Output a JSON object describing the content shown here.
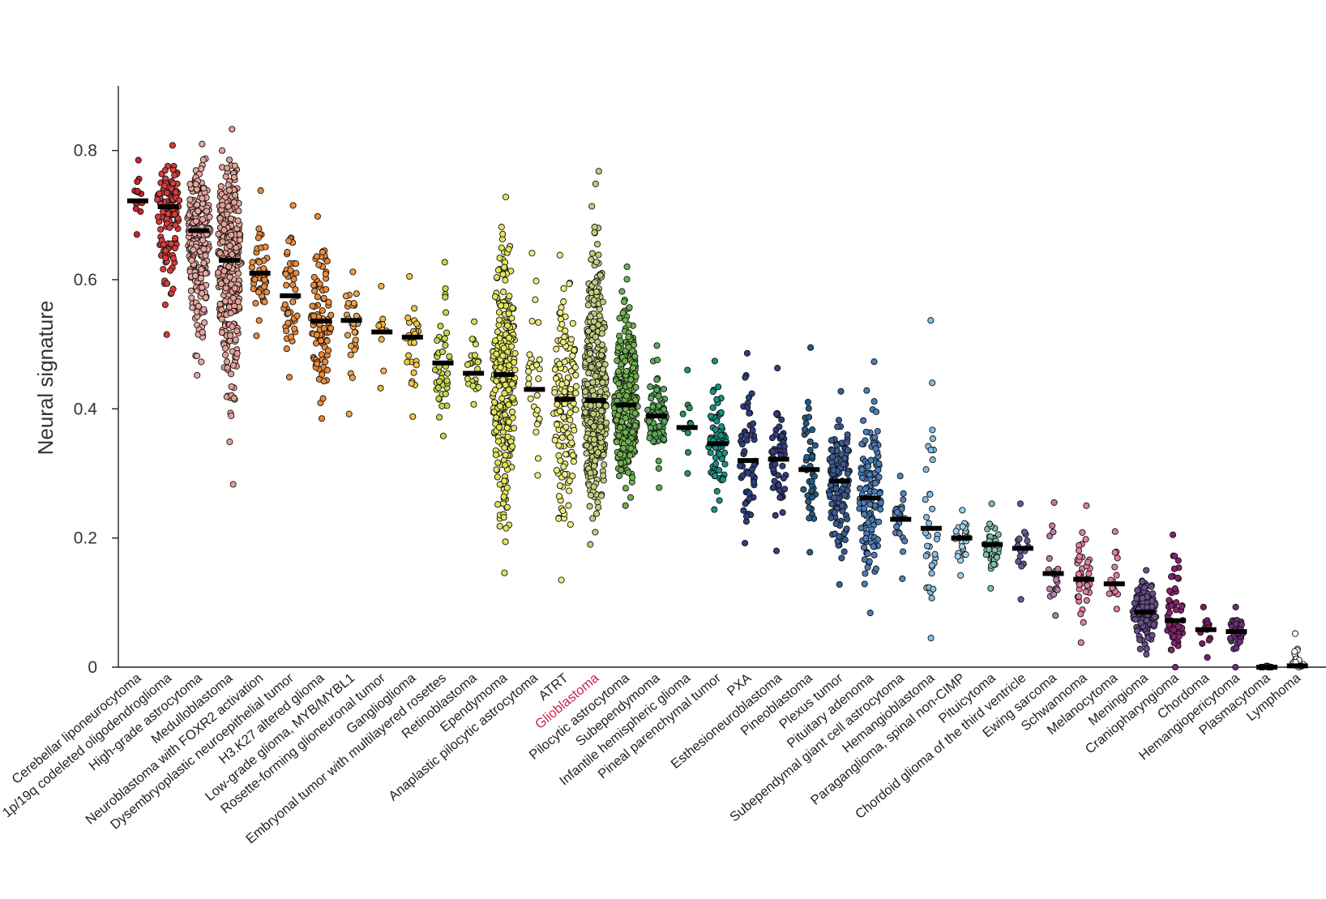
{
  "chart_data": {
    "type": "scatter",
    "subtype": "strip-plot-with-medians",
    "title": "",
    "xlabel": "",
    "ylabel": "Neural signature",
    "ylim": [
      0,
      0.9
    ],
    "yticks": [
      0,
      0.2,
      0.4,
      0.6,
      0.8
    ],
    "ytick_labels": [
      "0",
      "0.2",
      "0.4",
      "0.6",
      "0.8"
    ],
    "highlight_category": "Glioblastoma",
    "highlight_color": "#c8244c",
    "categories": [
      {
        "name": "Cerebellar liponeurocytoma",
        "color": "#cf2130",
        "median": 0.722,
        "min": 0.67,
        "max": 0.785,
        "n": 12
      },
      {
        "name": "1p/19q codeleted oligodendroglioma",
        "color": "#db3b3b",
        "median": 0.713,
        "min": 0.515,
        "max": 0.808,
        "n": 130
      },
      {
        "name": "High-grade astrocytoma",
        "color": "#e8a6a0",
        "median": 0.676,
        "min": 0.452,
        "max": 0.81,
        "n": 260
      },
      {
        "name": "Medulloblastoma",
        "color": "#e5a093",
        "median": 0.63,
        "min": 0.283,
        "max": 0.833,
        "n": 300
      },
      {
        "name": "Neuroblastoma with FOXR2 activation",
        "color": "#e88b3e",
        "median": 0.61,
        "min": 0.513,
        "max": 0.738,
        "n": 50
      },
      {
        "name": "Dysembryoplastic neuroepithelial tumor",
        "color": "#ea8c40",
        "median": 0.575,
        "min": 0.449,
        "max": 0.715,
        "n": 45
      },
      {
        "name": "H3.K27 altered glioma",
        "color": "#e88a3a",
        "median": 0.536,
        "min": 0.385,
        "max": 0.698,
        "n": 100
      },
      {
        "name": "Low-grade glioma, MYB/MYBL1",
        "color": "#eda24b",
        "median": 0.537,
        "min": 0.392,
        "max": 0.612,
        "n": 30
      },
      {
        "name": "Rosette-forming glioneuronal tumor",
        "color": "#f0b540",
        "median": 0.519,
        "min": 0.432,
        "max": 0.59,
        "n": 10
      },
      {
        "name": "Ganglioglioma",
        "color": "#f2c640",
        "median": 0.511,
        "min": 0.388,
        "max": 0.605,
        "n": 26
      },
      {
        "name": "Embryonal tumor with multilayered rosettes",
        "color": "#c5d54c",
        "median": 0.471,
        "min": 0.358,
        "max": 0.627,
        "n": 45
      },
      {
        "name": "Retinoblastoma",
        "color": "#d4df56",
        "median": 0.455,
        "min": 0.407,
        "max": 0.535,
        "n": 25
      },
      {
        "name": "Ependymoma",
        "color": "#e3e55c",
        "median": 0.453,
        "min": 0.146,
        "max": 0.728,
        "n": 280
      },
      {
        "name": "Anaplastic pilocytic astrocytoma",
        "color": "#ecec82",
        "median": 0.43,
        "min": 0.297,
        "max": 0.641,
        "n": 30
      },
      {
        "name": "ATRT",
        "color": "#eded7c",
        "median": 0.415,
        "min": 0.135,
        "max": 0.638,
        "n": 150
      },
      {
        "name": "Glioblastoma",
        "color": "#bfce7c",
        "median": 0.413,
        "min": 0.19,
        "max": 0.768,
        "n": 400
      },
      {
        "name": "Pilocytic astrocytoma",
        "color": "#6fb24f",
        "median": 0.406,
        "min": 0.25,
        "max": 0.62,
        "n": 320
      },
      {
        "name": "Subependymoma",
        "color": "#5aa85a",
        "median": 0.389,
        "min": 0.278,
        "max": 0.498,
        "n": 80
      },
      {
        "name": "Infantile hemispheric glioma",
        "color": "#2a9355",
        "median": 0.371,
        "min": 0.3,
        "max": 0.46,
        "n": 10
      },
      {
        "name": "Pineal parenchymal tumor",
        "color": "#159283",
        "median": 0.346,
        "min": 0.244,
        "max": 0.474,
        "n": 70
      },
      {
        "name": "PXA",
        "color": "#2e3f80",
        "median": 0.32,
        "min": 0.192,
        "max": 0.486,
        "n": 55
      },
      {
        "name": "Esthesioneuroblastoma",
        "color": "#323d82",
        "median": 0.322,
        "min": 0.18,
        "max": 0.463,
        "n": 55
      },
      {
        "name": "Pineoblastoma",
        "color": "#265c85",
        "median": 0.306,
        "min": 0.178,
        "max": 0.495,
        "n": 40
      },
      {
        "name": "Plexus tumor",
        "color": "#3b5c97",
        "median": 0.288,
        "min": 0.128,
        "max": 0.427,
        "n": 130
      },
      {
        "name": "Pituitary adenoma",
        "color": "#4a7db9",
        "median": 0.262,
        "min": 0.084,
        "max": 0.473,
        "n": 130
      },
      {
        "name": "Subependymal giant cell astrocytoma",
        "color": "#5880b8",
        "median": 0.229,
        "min": 0.137,
        "max": 0.296,
        "n": 25
      },
      {
        "name": "Hemangioblastoma",
        "color": "#86bde3",
        "median": 0.215,
        "min": 0.045,
        "max": 0.537,
        "n": 35
      },
      {
        "name": "Paraganglioma, spinal non-CIMP",
        "color": "#9fd2e6",
        "median": 0.2,
        "min": 0.142,
        "max": 0.243,
        "n": 25
      },
      {
        "name": "Pituicytoma",
        "color": "#7fbfae",
        "median": 0.19,
        "min": 0.122,
        "max": 0.253,
        "n": 40
      },
      {
        "name": "Chordoid glioma of the third ventricle",
        "color": "#6a5898",
        "median": 0.184,
        "min": 0.105,
        "max": 0.253,
        "n": 15
      },
      {
        "name": "Ewing sarcoma",
        "color": "#ba7ca8",
        "median": 0.145,
        "min": 0.08,
        "max": 0.255,
        "n": 20
      },
      {
        "name": "Schwannoma",
        "color": "#e17fa4",
        "median": 0.136,
        "min": 0.038,
        "max": 0.25,
        "n": 40
      },
      {
        "name": "Melanocytoma",
        "color": "#e07fa5",
        "median": 0.129,
        "min": 0.09,
        "max": 0.21,
        "n": 15
      },
      {
        "name": "Meningioma",
        "color": "#6a4e8e",
        "median": 0.085,
        "min": 0.02,
        "max": 0.15,
        "n": 150
      },
      {
        "name": "Craniopharyngioma",
        "color": "#862270",
        "median": 0.072,
        "min": 0.0,
        "max": 0.205,
        "n": 60
      },
      {
        "name": "Chordoma",
        "color": "#7c1c68",
        "median": 0.058,
        "min": 0.015,
        "max": 0.093,
        "n": 15
      },
      {
        "name": "Hemangiopericytoma",
        "color": "#6c2f78",
        "median": 0.055,
        "min": 0.0,
        "max": 0.093,
        "n": 30
      },
      {
        "name": "Plasmacytoma",
        "color": "#8a8a8a",
        "median": 0.0,
        "min": 0.0,
        "max": 0.002,
        "n": 20
      },
      {
        "name": "Lymphoma",
        "color": "#ffffff",
        "median": 0.002,
        "min": 0.0,
        "max": 0.052,
        "n": 20
      }
    ]
  }
}
